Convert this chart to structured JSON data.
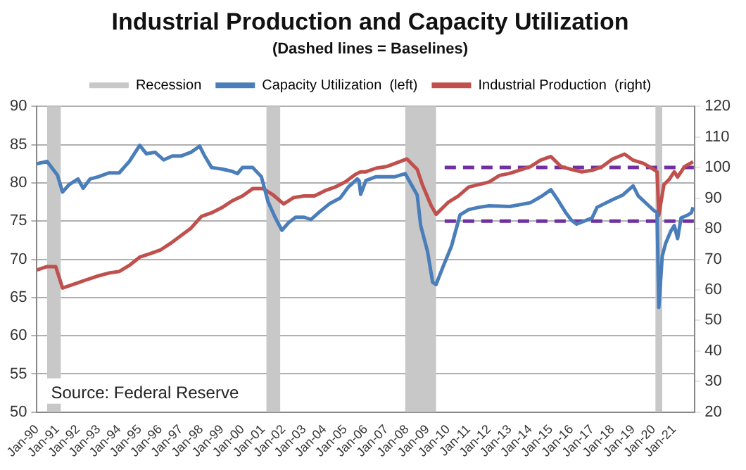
{
  "chart_data": {
    "type": "line",
    "title": "Industrial Production and Capacity Utilization",
    "subtitle": "(Dashed lines = Baselines)",
    "xlim": [
      "1990-01",
      "2022-01"
    ],
    "xticks": [
      {
        "value": "1990-01",
        "label": "Jan-90"
      },
      {
        "value": "1991-01",
        "label": "Jan-91"
      },
      {
        "value": "1992-01",
        "label": "Jan-92"
      },
      {
        "value": "1993-01",
        "label": "Jan-93"
      },
      {
        "value": "1994-01",
        "label": "Jan-94"
      },
      {
        "value": "1995-01",
        "label": "Jan-95"
      },
      {
        "value": "1996-01",
        "label": "Jan-96"
      },
      {
        "value": "1997-01",
        "label": "Jan-97"
      },
      {
        "value": "1998-01",
        "label": "Jan-98"
      },
      {
        "value": "1999-01",
        "label": "Jan-99"
      },
      {
        "value": "2000-01",
        "label": "Jan-00"
      },
      {
        "value": "2001-01",
        "label": "Jan-01"
      },
      {
        "value": "2002-01",
        "label": "Jan-02"
      },
      {
        "value": "2003-01",
        "label": "Jan-03"
      },
      {
        "value": "2004-01",
        "label": "Jan-04"
      },
      {
        "value": "2005-01",
        "label": "Jan-05"
      },
      {
        "value": "2006-01",
        "label": "Jan-06"
      },
      {
        "value": "2007-01",
        "label": "Jan-07"
      },
      {
        "value": "2008-01",
        "label": "Jan-08"
      },
      {
        "value": "2009-01",
        "label": "Jan-09"
      },
      {
        "value": "2010-01",
        "label": "Jan-10"
      },
      {
        "value": "2011-01",
        "label": "Jan-11"
      },
      {
        "value": "2012-01",
        "label": "Jan-12"
      },
      {
        "value": "2013-01",
        "label": "Jan-13"
      },
      {
        "value": "2014-01",
        "label": "Jan-14"
      },
      {
        "value": "2015-01",
        "label": "Jan-15"
      },
      {
        "value": "2016-01",
        "label": "Jan-16"
      },
      {
        "value": "2017-01",
        "label": "Jan-17"
      },
      {
        "value": "2018-01",
        "label": "Jan-18"
      },
      {
        "value": "2019-01",
        "label": "Jan-19"
      },
      {
        "value": "2020-01",
        "label": "Jan-20"
      },
      {
        "value": "2021-01",
        "label": "Jan-21"
      }
    ],
    "ylim": [
      50,
      90
    ],
    "yticks": [
      50,
      55,
      60,
      65,
      70,
      75,
      80,
      85,
      90
    ],
    "y2lim": [
      20,
      120
    ],
    "y2ticks": [
      20,
      30,
      40,
      50,
      60,
      70,
      80,
      90,
      100,
      110,
      120
    ],
    "grid": "y",
    "legend": "top",
    "bands": [
      {
        "axis": "x",
        "from": "1990-07",
        "to": "1991-03",
        "label": "Recession",
        "color": "#c8c8c8"
      },
      {
        "axis": "x",
        "from": "2001-03",
        "to": "2001-11",
        "color": "#c8c8c8"
      },
      {
        "axis": "x",
        "from": "2007-12",
        "to": "2009-06",
        "color": "#c8c8c8"
      },
      {
        "axis": "x",
        "from": "2020-02",
        "to": "2020-06",
        "color": "#c8c8c8"
      }
    ],
    "series": [
      {
        "name": "Capacity Utilization  (left)",
        "color": "#4a7ebb",
        "axis": "y",
        "x": [
          "1990-01",
          "1990-07",
          "1991-01",
          "1991-04",
          "1991-08",
          "1992-01",
          "1992-04",
          "1992-08",
          "1993-01",
          "1993-07",
          "1994-01",
          "1994-07",
          "1995-01",
          "1995-05",
          "1995-10",
          "1996-03",
          "1996-08",
          "1997-01",
          "1997-07",
          "1997-12",
          "1998-03",
          "1998-07",
          "1999-01",
          "1999-07",
          "1999-10",
          "2000-01",
          "2000-07",
          "2000-12",
          "2001-04",
          "2001-08",
          "2001-12",
          "2002-04",
          "2002-08",
          "2003-01",
          "2003-05",
          "2003-10",
          "2004-04",
          "2004-10",
          "2005-03",
          "2005-08",
          "2005-09",
          "2005-10",
          "2006-01",
          "2006-07",
          "2007-06",
          "2007-12",
          "2008-07",
          "2008-09",
          "2009-01",
          "2009-04",
          "2009-06",
          "2009-10",
          "2010-03",
          "2010-08",
          "2011-01",
          "2011-07",
          "2012-01",
          "2013-01",
          "2014-01",
          "2014-08",
          "2015-01",
          "2015-05",
          "2015-10",
          "2016-01",
          "2016-04",
          "2017-01",
          "2017-04",
          "2018-01",
          "2018-07",
          "2019-01",
          "2019-04",
          "2020-01",
          "2020-03",
          "2020-04",
          "2020-06",
          "2020-08",
          "2020-11",
          "2021-01",
          "2021-03",
          "2021-05",
          "2021-09",
          "2021-11",
          "2021-12"
        ],
        "values": [
          82.5,
          82.8,
          81,
          78.8,
          79.8,
          80.5,
          79.3,
          80.5,
          80.8,
          81.3,
          81.3,
          82.8,
          84.9,
          83.8,
          84,
          83,
          83.5,
          83.5,
          84,
          84.8,
          83.5,
          82,
          81.8,
          81.5,
          81.2,
          82,
          82,
          80.8,
          77.5,
          75.5,
          73.8,
          74.8,
          75.5,
          75.5,
          75.2,
          76.2,
          77.3,
          78,
          79.5,
          80.5,
          80.3,
          78.5,
          80.3,
          80.8,
          80.8,
          81.2,
          78.4,
          74.4,
          71,
          67,
          66.7,
          69,
          71.7,
          75.8,
          76.5,
          76.8,
          77,
          76.9,
          77.4,
          78.3,
          79.1,
          77.8,
          76,
          75.1,
          74.6,
          75.4,
          76.8,
          77.8,
          78.4,
          79.6,
          78.3,
          76.4,
          76.1,
          63.7,
          70.4,
          72.1,
          73.7,
          74.4,
          72.7,
          75.4,
          75.8,
          76.1,
          76.8
        ]
      },
      {
        "name": "Industrial Production  (right)",
        "color": "#c0504d",
        "axis": "y2",
        "x": [
          "1990-01",
          "1990-07",
          "1990-12",
          "1991-04",
          "1992-01",
          "1992-07",
          "1993-01",
          "1993-07",
          "1994-01",
          "1994-07",
          "1995-01",
          "1995-07",
          "1996-01",
          "1996-07",
          "1997-01",
          "1997-07",
          "1998-01",
          "1998-07",
          "1999-01",
          "1999-07",
          "2000-01",
          "2000-07",
          "2001-01",
          "2001-07",
          "2002-01",
          "2002-07",
          "2003-01",
          "2003-07",
          "2004-01",
          "2004-07",
          "2005-01",
          "2005-07",
          "2005-10",
          "2006-01",
          "2006-07",
          "2007-01",
          "2008-01",
          "2008-07",
          "2008-10",
          "2009-03",
          "2009-06",
          "2010-01",
          "2010-07",
          "2011-01",
          "2012-01",
          "2012-07",
          "2013-01",
          "2014-01",
          "2014-07",
          "2015-01",
          "2015-07",
          "2016-01",
          "2016-07",
          "2017-01",
          "2017-07",
          "2018-01",
          "2018-08",
          "2019-01",
          "2019-07",
          "2020-01",
          "2020-03",
          "2020-04",
          "2020-07",
          "2020-10",
          "2021-01",
          "2021-03",
          "2021-07",
          "2021-12"
        ],
        "values": [
          66.5,
          67.6,
          67.6,
          60.6,
          62.3,
          63.5,
          64.6,
          65.5,
          66,
          68,
          70.7,
          71.8,
          73,
          75.2,
          77.7,
          80.2,
          84,
          85.2,
          86.9,
          89.1,
          90.7,
          93.1,
          93.1,
          91,
          88.1,
          90.2,
          90.7,
          90.7,
          92.4,
          93.6,
          95.3,
          97.8,
          98.6,
          98.6,
          99.8,
          100.3,
          102.8,
          99.4,
          94.4,
          87.7,
          84.7,
          88.6,
          90.7,
          93.6,
          95.3,
          97.4,
          98.1,
          100.3,
          102.4,
          103.6,
          100.3,
          99.4,
          98.6,
          99.1,
          100.3,
          102.8,
          104.4,
          102.4,
          101.4,
          99.4,
          98.6,
          84.4,
          94.4,
          96.1,
          98.6,
          96.9,
          100.3,
          101.9
        ]
      },
      {
        "color": "#7030a0",
        "axis": "y",
        "line_style": "dashed",
        "x": [
          "2009-11",
          "2022-01"
        ],
        "values": [
          75,
          75
        ]
      },
      {
        "color": "#7030a0",
        "axis": "y2",
        "line_style": "dashed",
        "x": [
          "2009-11",
          "2022-01"
        ],
        "values": [
          100,
          100
        ]
      }
    ],
    "annotations": [
      "Source: Federal Reserve"
    ]
  }
}
